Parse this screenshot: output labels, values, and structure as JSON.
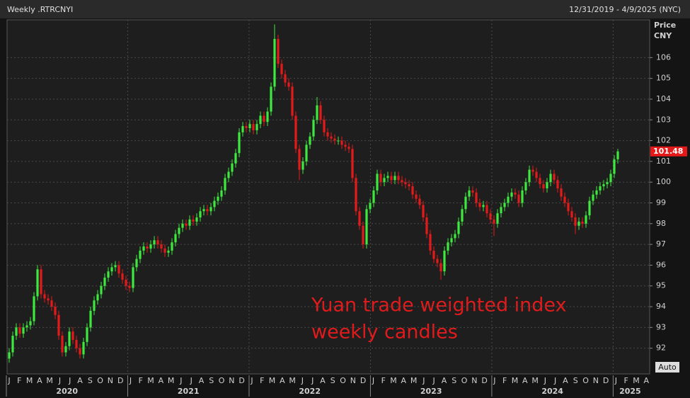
{
  "chart_data": {
    "type": "candlestick",
    "title": "Weekly .RTRCNYI",
    "date_range": "12/31/2019 - 4/9/2025 (NYC)",
    "y_axis_label": "Price",
    "y_axis_unit": "CNY",
    "scale_mode": "Auto",
    "annotation": [
      "Yuan trade weighted index",
      "weekly candles"
    ],
    "up_color": "#3ee83e",
    "down_color": "#e41a1a",
    "grid": true,
    "ylim": [
      90.76,
      107.82
    ],
    "yticks": [
      92,
      93,
      94,
      95,
      96,
      97,
      98,
      99,
      100,
      101,
      102,
      103,
      104,
      105,
      106
    ],
    "x_months": [
      "J",
      "F",
      "M",
      "A",
      "M",
      "J",
      "J",
      "A",
      "S",
      "O",
      "N",
      "D",
      "J",
      "F",
      "M",
      "A",
      "M",
      "J",
      "J",
      "A",
      "S",
      "O",
      "N",
      "D",
      "J",
      "F",
      "M",
      "A",
      "M",
      "J",
      "J",
      "A",
      "S",
      "O",
      "N",
      "D",
      "J",
      "F",
      "M",
      "A",
      "M",
      "J",
      "J",
      "A",
      "S",
      "O",
      "N",
      "D",
      "J",
      "F",
      "M",
      "A",
      "M",
      "J",
      "J",
      "A",
      "S",
      "O",
      "N",
      "D",
      "J",
      "F",
      "M",
      "A"
    ],
    "x_years": [
      "2020",
      "2021",
      "2022",
      "2023",
      "2024",
      "2025"
    ],
    "categories": [
      null,
      null,
      null,
      null,
      null,
      null,
      null,
      null,
      null,
      null,
      null,
      null,
      null,
      null,
      null,
      null,
      null,
      null,
      null,
      null,
      null,
      null,
      null,
      null,
      null,
      null,
      null,
      null,
      null,
      null,
      null,
      null,
      null,
      null,
      null,
      null,
      null,
      null,
      null,
      null,
      null,
      null,
      null,
      null,
      null,
      null,
      null,
      null,
      null,
      null,
      null,
      null,
      null,
      null,
      null,
      null,
      null,
      null,
      null,
      null,
      null,
      null,
      null,
      null,
      null,
      null,
      null,
      null,
      null,
      null,
      null,
      null,
      null,
      null,
      null,
      null,
      null,
      null,
      null,
      null,
      null,
      null,
      null,
      null,
      null,
      null,
      null,
      null,
      null,
      null,
      null,
      null,
      null,
      null,
      null,
      null,
      null,
      null,
      null,
      null,
      null,
      null,
      null,
      null,
      null,
      null,
      null,
      null,
      null,
      null,
      null,
      null,
      null,
      null,
      null,
      null,
      null,
      null,
      null,
      null,
      null,
      null,
      null,
      null,
      null,
      null,
      null,
      null,
      null,
      null,
      null,
      null,
      null,
      null,
      null,
      null,
      null,
      null,
      null,
      null,
      null,
      null,
      null,
      null,
      null,
      null,
      null,
      null,
      null,
      null,
      null,
      null,
      null,
      null,
      null,
      null,
      null,
      null,
      null,
      null,
      null,
      null,
      null,
      null,
      null,
      null,
      null,
      null,
      null,
      null,
      null,
      null,
      null
    ],
    "open": [
      91.5,
      91.8,
      92.6,
      93.0,
      92.7,
      93.0,
      93.1,
      93.3,
      94.5,
      95.8,
      94.6,
      94.4,
      94.3,
      94.0,
      93.6,
      92.6,
      91.8,
      92.1,
      92.8,
      92.4,
      92.0,
      91.7,
      92.3,
      93.0,
      93.8,
      94.3,
      94.6,
      95.0,
      95.4,
      95.7,
      95.9,
      96.0,
      95.6,
      95.3,
      95.0,
      94.9,
      95.9,
      96.3,
      96.7,
      96.9,
      96.8,
      97.0,
      97.2,
      97.0,
      96.8,
      96.6,
      96.7,
      97.1,
      97.5,
      97.8,
      98.0,
      97.9,
      98.2,
      98.1,
      98.3,
      98.6,
      98.7,
      98.6,
      98.8,
      99.1,
      99.3,
      99.6,
      100.2,
      100.5,
      100.9,
      101.4,
      102.4,
      102.7,
      102.6,
      102.8,
      102.5,
      102.8,
      103.2,
      102.9,
      103.4,
      104.6,
      106.9,
      105.7,
      105.2,
      104.8,
      104.6,
      103.2,
      101.6,
      100.6,
      101.0,
      101.8,
      102.2,
      103.0,
      103.7,
      103.0,
      102.4,
      102.2,
      102.1,
      102.0,
      102.0,
      101.8,
      101.7,
      101.6,
      100.2,
      98.6,
      97.9,
      97.0,
      98.7,
      99.0,
      99.6,
      100.4,
      100.0,
      100.2,
      100.3,
      100.1,
      100.3,
      100.1,
      100.0,
      99.9,
      99.8,
      99.4,
      99.2,
      98.9,
      98.3,
      97.5,
      96.7,
      96.3,
      96.1,
      95.7,
      96.7,
      97.1,
      97.3,
      97.5,
      98.1,
      98.7,
      99.3,
      99.6,
      99.5,
      99.0,
      98.8,
      98.9,
      98.5,
      98.2,
      98.0,
      98.5,
      98.8,
      99.0,
      99.3,
      99.5,
      99.4,
      99.0,
      99.6,
      100.0,
      100.6,
      100.5,
      100.2,
      99.9,
      99.7,
      100.0,
      100.4,
      100.1,
      99.7,
      99.3,
      99.0,
      98.6,
      98.3,
      97.9,
      98.1,
      98.0,
      98.4,
      99.1,
      99.4,
      99.6,
      99.8,
      99.9,
      100.0,
      100.4,
      101.1
    ],
    "high": [
      92.0,
      92.8,
      93.2,
      93.2,
      93.2,
      93.3,
      93.5,
      94.7,
      96.0,
      96.0,
      94.8,
      94.6,
      94.5,
      94.2,
      93.8,
      92.8,
      92.3,
      93.0,
      93.0,
      92.6,
      92.2,
      92.5,
      93.2,
      94.0,
      94.5,
      94.8,
      95.2,
      95.6,
      95.9,
      96.1,
      96.2,
      96.2,
      95.8,
      95.5,
      95.2,
      96.1,
      96.5,
      96.9,
      97.1,
      97.1,
      97.2,
      97.4,
      97.4,
      97.2,
      97.0,
      96.9,
      97.3,
      97.7,
      98.0,
      98.2,
      98.2,
      98.4,
      98.4,
      98.5,
      98.8,
      98.9,
      98.9,
      99.0,
      99.3,
      99.5,
      99.8,
      100.4,
      100.7,
      101.1,
      101.6,
      102.6,
      102.9,
      102.9,
      103.0,
      103.0,
      103.0,
      103.4,
      103.4,
      103.6,
      104.8,
      107.6,
      107.1,
      105.9,
      105.4,
      105.0,
      104.8,
      103.4,
      101.8,
      101.2,
      102.0,
      102.4,
      103.2,
      104.1,
      103.9,
      103.2,
      102.6,
      102.4,
      102.3,
      102.2,
      102.2,
      102.0,
      101.9,
      101.8,
      100.4,
      98.8,
      98.1,
      98.9,
      99.2,
      99.8,
      100.6,
      100.6,
      100.4,
      100.5,
      100.5,
      100.5,
      100.5,
      100.3,
      100.2,
      100.1,
      100.0,
      99.6,
      99.4,
      99.1,
      98.5,
      97.7,
      96.9,
      96.5,
      96.3,
      96.9,
      97.3,
      97.5,
      97.7,
      98.3,
      98.9,
      99.5,
      99.8,
      99.8,
      99.7,
      99.2,
      99.1,
      99.1,
      98.7,
      98.4,
      98.7,
      99.0,
      99.2,
      99.5,
      99.7,
      99.7,
      99.6,
      99.8,
      100.2,
      100.8,
      100.8,
      100.7,
      100.4,
      100.1,
      100.2,
      100.6,
      100.6,
      100.3,
      99.9,
      99.5,
      99.2,
      98.8,
      98.5,
      98.3,
      98.3,
      98.6,
      99.3,
      99.6,
      99.8,
      100.0,
      100.1,
      100.2,
      100.6,
      101.3,
      101.6
    ],
    "low": [
      91.3,
      91.6,
      92.4,
      92.5,
      92.5,
      92.8,
      92.9,
      93.1,
      94.3,
      94.4,
      94.2,
      94.1,
      93.8,
      93.4,
      92.4,
      91.6,
      91.6,
      91.9,
      92.2,
      91.8,
      91.5,
      91.5,
      92.1,
      92.8,
      93.6,
      94.1,
      94.4,
      94.8,
      95.2,
      95.5,
      95.7,
      95.4,
      95.1,
      94.8,
      94.7,
      94.7,
      95.7,
      96.1,
      96.5,
      96.6,
      96.6,
      96.8,
      96.8,
      96.6,
      96.4,
      96.4,
      96.5,
      96.9,
      97.3,
      97.6,
      97.7,
      97.7,
      97.9,
      97.9,
      98.1,
      98.4,
      98.4,
      98.4,
      98.6,
      98.9,
      99.1,
      99.4,
      100.0,
      100.3,
      100.7,
      101.2,
      102.2,
      102.4,
      102.4,
      102.3,
      102.3,
      102.6,
      102.7,
      102.7,
      103.2,
      104.4,
      105.5,
      105.0,
      104.6,
      104.4,
      103.0,
      101.4,
      100.1,
      100.4,
      100.8,
      101.6,
      102.0,
      102.8,
      102.8,
      102.2,
      102.0,
      101.9,
      101.8,
      101.8,
      101.6,
      101.5,
      101.4,
      100.0,
      98.4,
      97.7,
      96.8,
      96.8,
      98.5,
      98.8,
      99.4,
      99.8,
      99.8,
      100.0,
      99.9,
      99.9,
      99.9,
      99.8,
      99.7,
      99.6,
      99.2,
      99.0,
      98.7,
      98.1,
      97.3,
      96.5,
      96.1,
      95.9,
      95.3,
      95.5,
      96.5,
      96.9,
      97.1,
      97.3,
      97.9,
      98.5,
      99.1,
      99.3,
      98.8,
      98.6,
      98.6,
      98.3,
      98.0,
      97.4,
      97.8,
      98.3,
      98.6,
      98.8,
      99.1,
      99.2,
      98.8,
      98.8,
      99.4,
      99.8,
      100.3,
      100.0,
      99.7,
      99.5,
      99.5,
      99.8,
      99.9,
      99.5,
      99.1,
      98.8,
      98.4,
      98.1,
      97.5,
      97.7,
      97.8,
      97.8,
      98.2,
      98.9,
      99.2,
      99.4,
      99.6,
      99.7,
      99.8,
      100.2,
      100.9
    ],
    "close": [
      91.8,
      92.6,
      93.0,
      92.7,
      93.0,
      93.1,
      93.3,
      94.5,
      95.8,
      94.6,
      94.4,
      94.3,
      94.0,
      93.6,
      92.6,
      91.8,
      92.1,
      92.8,
      92.4,
      92.0,
      91.7,
      92.3,
      93.0,
      93.8,
      94.3,
      94.6,
      95.0,
      95.4,
      95.7,
      95.9,
      96.0,
      95.6,
      95.3,
      95.0,
      94.9,
      95.9,
      96.3,
      96.7,
      96.9,
      96.8,
      97.0,
      97.2,
      97.0,
      96.8,
      96.6,
      96.7,
      97.1,
      97.5,
      97.8,
      98.0,
      97.9,
      98.2,
      98.1,
      98.3,
      98.6,
      98.7,
      98.6,
      98.8,
      99.1,
      99.3,
      99.6,
      100.2,
      100.5,
      100.9,
      101.4,
      102.4,
      102.7,
      102.6,
      102.8,
      102.5,
      102.8,
      103.2,
      102.9,
      103.4,
      104.6,
      106.9,
      105.7,
      105.2,
      104.8,
      104.6,
      103.2,
      101.6,
      100.6,
      101.0,
      101.8,
      102.2,
      103.0,
      103.7,
      103.0,
      102.4,
      102.2,
      102.1,
      102.0,
      102.0,
      101.8,
      101.7,
      101.6,
      100.2,
      98.6,
      97.9,
      97.0,
      98.7,
      99.0,
      99.6,
      100.4,
      100.0,
      100.2,
      100.3,
      100.1,
      100.3,
      100.1,
      100.0,
      99.9,
      99.8,
      99.4,
      99.2,
      98.9,
      98.3,
      97.5,
      96.7,
      96.3,
      96.1,
      95.7,
      96.7,
      97.1,
      97.3,
      97.5,
      98.1,
      98.7,
      99.3,
      99.6,
      99.5,
      99.0,
      98.8,
      98.9,
      98.5,
      98.2,
      98.0,
      98.5,
      98.8,
      99.0,
      99.3,
      99.5,
      99.4,
      99.0,
      99.6,
      100.0,
      100.6,
      100.5,
      100.2,
      99.9,
      99.7,
      100.0,
      100.4,
      100.1,
      99.7,
      99.3,
      99.0,
      98.6,
      98.3,
      97.9,
      98.1,
      98.0,
      98.4,
      99.1,
      99.4,
      99.6,
      99.8,
      99.9,
      100.0,
      100.4,
      101.1,
      101.48
    ]
  }
}
